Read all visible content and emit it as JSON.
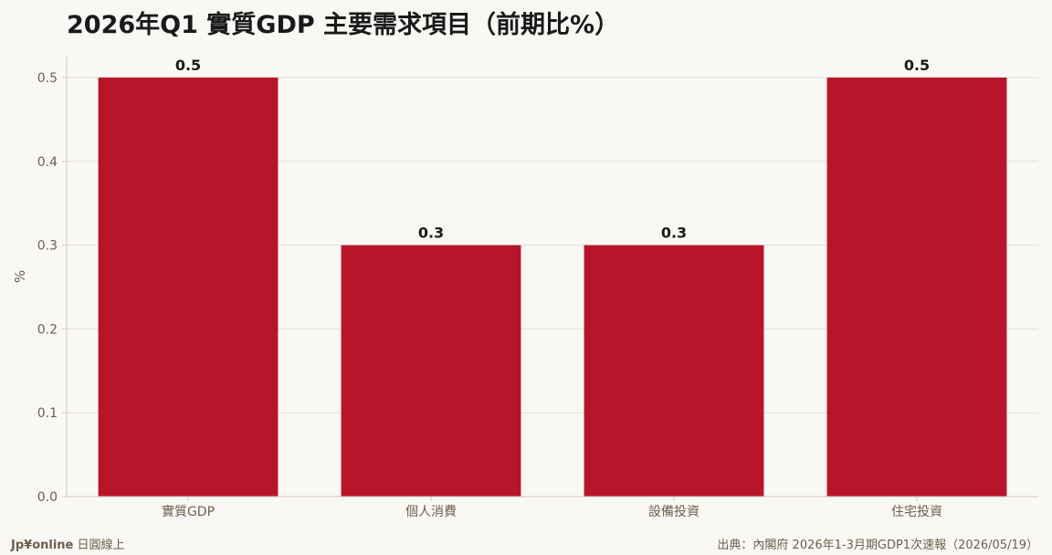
{
  "chart_data": {
    "type": "bar",
    "title": "2026年Q1 實質GDP 主要需求項目（前期比%）",
    "ylabel": "%",
    "xlabel": "",
    "categories": [
      "實質GDP",
      "個人消費",
      "設備投資",
      "住宅投資"
    ],
    "values": [
      0.5,
      0.3,
      0.3,
      0.5
    ],
    "data_labels": [
      "0.5",
      "0.3",
      "0.3",
      "0.5"
    ],
    "ylim": [
      0,
      0.525
    ],
    "yticks": [
      0.0,
      0.1,
      0.2,
      0.3,
      0.4,
      0.5
    ],
    "ytick_labels": [
      "0.0",
      "0.1",
      "0.2",
      "0.3",
      "0.4",
      "0.5"
    ],
    "grid": true,
    "bar_color": "#b8152b"
  },
  "footer": {
    "brand": "Jp¥online",
    "brand_sub": "日圓線上",
    "source": "出典：內閣府 2026年1-3月期GDP1次速報（2026/05/19）"
  },
  "colors": {
    "background": "#faf8f4",
    "grid": "#e3ded6",
    "axis_text": "#6b5e4e",
    "bar": "#b8152b"
  }
}
